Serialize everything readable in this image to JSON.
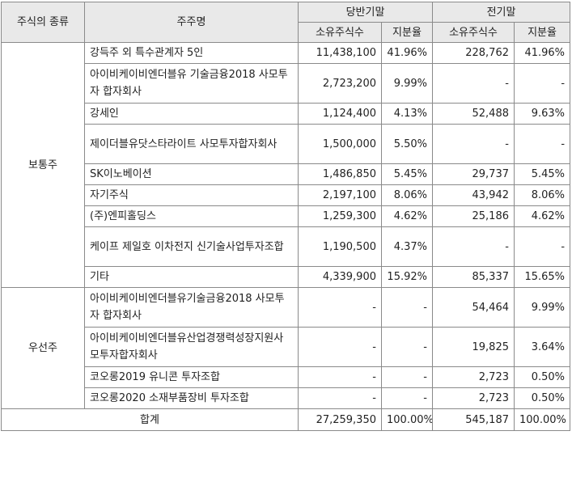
{
  "header": {
    "type": "주식의 종류",
    "holder": "주주명",
    "current": "당반기말",
    "previous": "전기말",
    "shares": "소유주식수",
    "ratio": "지분율"
  },
  "groups": [
    {
      "type": "보통주",
      "rows": [
        {
          "name": "강득주 외 특수관계자 5인",
          "cur_shares": "11,438,100",
          "cur_ratio": "41.96%",
          "prev_shares": "228,762",
          "prev_ratio": "41.96%"
        },
        {
          "name": "아이비케이비엔더블유 기술금융2018 사모투자 합자회사",
          "cur_shares": "2,723,200",
          "cur_ratio": "9.99%",
          "prev_shares": "-",
          "prev_ratio": "-"
        },
        {
          "name": "강세인",
          "cur_shares": "1,124,400",
          "cur_ratio": "4.13%",
          "prev_shares": "52,488",
          "prev_ratio": "9.63%"
        },
        {
          "name": "제이더블유닷스타라이트 사모투자합자회사",
          "cur_shares": "1,500,000",
          "cur_ratio": "5.50%",
          "prev_shares": "-",
          "prev_ratio": "-"
        },
        {
          "name": "SK이노베이션",
          "cur_shares": "1,486,850",
          "cur_ratio": "5.45%",
          "prev_shares": "29,737",
          "prev_ratio": "5.45%"
        },
        {
          "name": "자기주식",
          "cur_shares": "2,197,100",
          "cur_ratio": "8.06%",
          "prev_shares": "43,942",
          "prev_ratio": "8.06%"
        },
        {
          "name": "(주)엔피홀딩스",
          "cur_shares": "1,259,300",
          "cur_ratio": "4.62%",
          "prev_shares": "25,186",
          "prev_ratio": "4.62%"
        },
        {
          "name": "케이프 제일호 이차전지 신기술사업투자조합",
          "cur_shares": "1,190,500",
          "cur_ratio": "4.37%",
          "prev_shares": "-",
          "prev_ratio": "-"
        },
        {
          "name": "기타",
          "cur_shares": "4,339,900",
          "cur_ratio": "15.92%",
          "prev_shares": "85,337",
          "prev_ratio": "15.65%"
        }
      ]
    },
    {
      "type": "우선주",
      "rows": [
        {
          "name": "아이비케이비엔더블유기술금융2018 사모투자 합자회사",
          "cur_shares": "-",
          "cur_ratio": "-",
          "prev_shares": "54,464",
          "prev_ratio": "9.99%"
        },
        {
          "name": "아이비케이비엔더블유산업경쟁력성장지원사모투자합자회사",
          "cur_shares": "-",
          "cur_ratio": "-",
          "prev_shares": "19,825",
          "prev_ratio": "3.64%"
        },
        {
          "name": "코오롱2019 유니콘 투자조합",
          "cur_shares": "-",
          "cur_ratio": "-",
          "prev_shares": "2,723",
          "prev_ratio": "0.50%"
        },
        {
          "name": "코오롱2020 소재부품장비 투자조합",
          "cur_shares": "-",
          "cur_ratio": "-",
          "prev_shares": "2,723",
          "prev_ratio": "0.50%"
        }
      ]
    }
  ],
  "total": {
    "label": "합계",
    "cur_shares": "27,259,350",
    "cur_ratio": "100.00%",
    "prev_shares": "545,187",
    "prev_ratio": "100.00%"
  }
}
